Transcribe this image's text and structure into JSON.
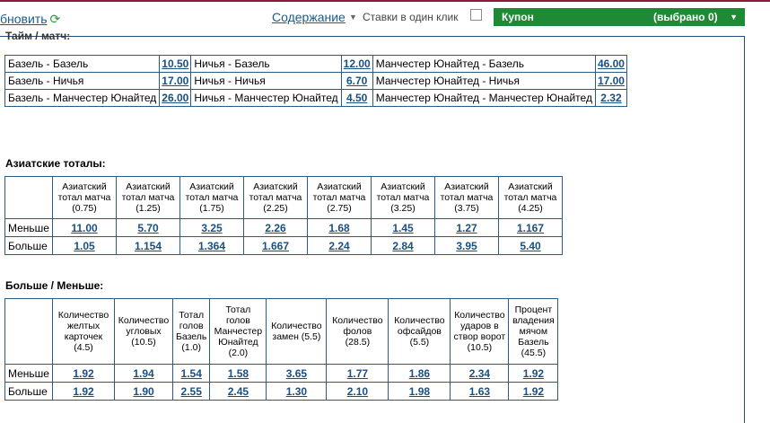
{
  "header": {
    "refresh_label": "бновить",
    "contents_label": "Содержание",
    "one_click_label": "Ставки в один клик",
    "coupon_label": "Купон",
    "coupon_selected": "(выбрано 0)",
    "accent_color": "#1f8a35"
  },
  "halftime": {
    "heading_fragment": "Тайм / матч:",
    "rows": [
      [
        {
          "label": "Базель - Базель",
          "odd": "10.50"
        },
        {
          "label": "Ничья - Базель",
          "odd": "12.00"
        },
        {
          "label": "Манчестер Юнайтед - Базель",
          "odd": "46.00"
        }
      ],
      [
        {
          "label": "Базель - Ничья",
          "odd": "17.00"
        },
        {
          "label": "Ничья - Ничья",
          "odd": "6.70"
        },
        {
          "label": "Манчестер Юнайтед - Ничья",
          "odd": "17.00"
        }
      ],
      [
        {
          "label": "Базель - Манчестер Юнайтед",
          "odd": "26.00"
        },
        {
          "label": "Ничья - Манчестер Юнайтед",
          "odd": "4.50"
        },
        {
          "label": "Манчестер Юнайтед - Манчестер Юнайтед",
          "odd": "2.32"
        }
      ]
    ]
  },
  "asian": {
    "heading": "Азиатские тоталы:",
    "columns": [
      "Азиатский тотал матча (0.75)",
      "Азиатский тотал матча (1.25)",
      "Азиатский тотал матча (1.75)",
      "Азиатский тотал матча (2.25)",
      "Азиатский тотал матча (2.75)",
      "Азиатский тотал матча (3.25)",
      "Азиатский тотал матча (3.75)",
      "Азиатский тотал матча (4.25)"
    ],
    "rows": [
      {
        "label": "Меньше",
        "odds": [
          "11.00",
          "5.70",
          "3.25",
          "2.26",
          "1.68",
          "1.45",
          "1.27",
          "1.167"
        ]
      },
      {
        "label": "Больше",
        "odds": [
          "1.05",
          "1.154",
          "1.364",
          "1.667",
          "2.24",
          "2.84",
          "3.95",
          "5.40"
        ]
      }
    ]
  },
  "over_under": {
    "heading": "Больше / Меньше:",
    "columns": [
      "Количество желтых карточек (4.5)",
      "Количество угловых (10.5)",
      "Тотал голов Базель (1.0)",
      "Тотал голов Манчестер Юнайтед (2.0)",
      "Количество замен (5.5)",
      "Количество фолов (28.5)",
      "Количество офсайдов (5.5)",
      "Количество ударов в створ ворот (10.5)",
      "Процент владения мячом Базель (45.5)"
    ],
    "rows": [
      {
        "label": "Меньше",
        "odds": [
          "1.92",
          "1.94",
          "1.54",
          "1.58",
          "3.65",
          "1.77",
          "1.86",
          "2.34",
          "1.92"
        ]
      },
      {
        "label": "Больше",
        "odds": [
          "1.92",
          "1.90",
          "2.55",
          "2.45",
          "1.30",
          "2.10",
          "1.98",
          "1.63",
          "1.92"
        ]
      }
    ]
  }
}
